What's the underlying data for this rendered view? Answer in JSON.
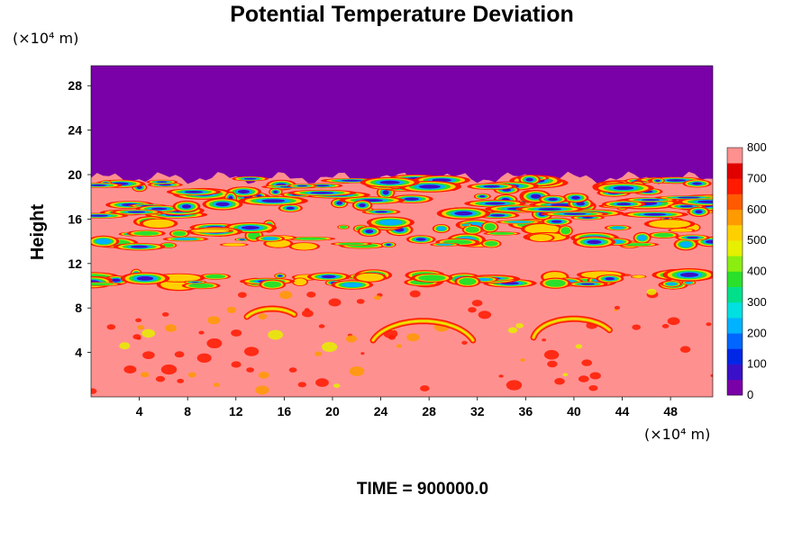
{
  "chart_data": {
    "type": "heatmap",
    "title": "Potential Temperature Deviation",
    "ylabel": "Height",
    "xlabel": "",
    "y_unit": "(×10⁴ m)",
    "x_unit": "(×10⁴ m)",
    "xlim": [
      0,
      51.5
    ],
    "ylim": [
      0,
      29.8
    ],
    "x_ticks": [
      4,
      8,
      12,
      16,
      20,
      24,
      28,
      32,
      36,
      40,
      44,
      48
    ],
    "y_ticks": [
      4,
      8,
      12,
      16,
      20,
      24,
      28
    ],
    "colorbar": {
      "min": 0,
      "max": 800,
      "ticks": [
        0,
        100,
        200,
        300,
        400,
        500,
        600,
        700,
        800
      ],
      "colors": [
        "#7a00a8",
        "#3a10c8",
        "#0026e6",
        "#0066ff",
        "#00b2ff",
        "#00e0e0",
        "#00e08a",
        "#2ae02a",
        "#8aee10",
        "#e6f000",
        "#ffd000",
        "#ff9a00",
        "#ff5a00",
        "#ff1a00",
        "#e00000",
        "#ff9090"
      ]
    },
    "fields": {
      "upper_layer_value": 0,
      "upper_layer_base_height": 19.7,
      "background_value": 800,
      "turbulent_band_heights": [
        [
          16.0,
          19.7
        ],
        [
          13.5,
          15.8
        ],
        [
          10.0,
          11.0
        ]
      ]
    }
  },
  "footer": {
    "time_label": "TIME = 900000.0"
  }
}
